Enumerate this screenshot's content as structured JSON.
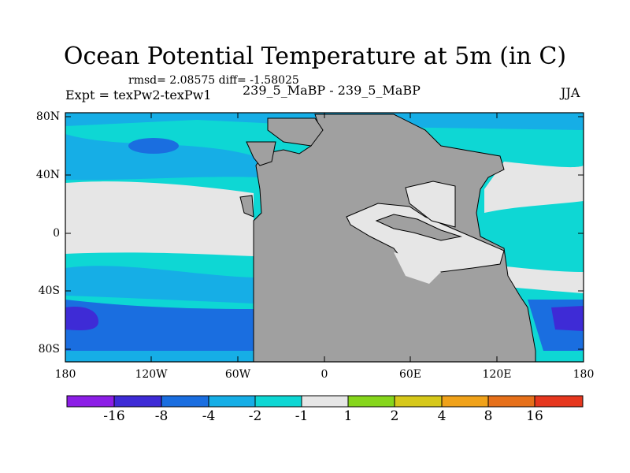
{
  "title": "Ocean Potential Temperature at 5m (in C)",
  "stats": "rmsd= 2.08575 diff= -1.58025",
  "expt": "Expt = texPw2-texPw1",
  "subtitle": "239_5_MaBP - 239_5_MaBP",
  "season": "JJA",
  "map": {
    "lat_ticks": [
      "80N",
      "40N",
      "0",
      "40S",
      "80S"
    ],
    "lon_ticks": [
      "180",
      "120W",
      "60W",
      "0",
      "60E",
      "120E",
      "180"
    ],
    "land_color": "#a0a0a0"
  },
  "colorbar": {
    "labels": [
      "-16",
      "-8",
      "-4",
      "-2",
      "-1",
      "1",
      "2",
      "4",
      "8",
      "16"
    ],
    "colors": [
      "#8c1ee6",
      "#3e2bd6",
      "#1a6ee0",
      "#16aee6",
      "#0ed7d4",
      "#e6e6e6",
      "#86d61c",
      "#d6c81a",
      "#f0a21a",
      "#e6701a",
      "#e6371e"
    ]
  }
}
